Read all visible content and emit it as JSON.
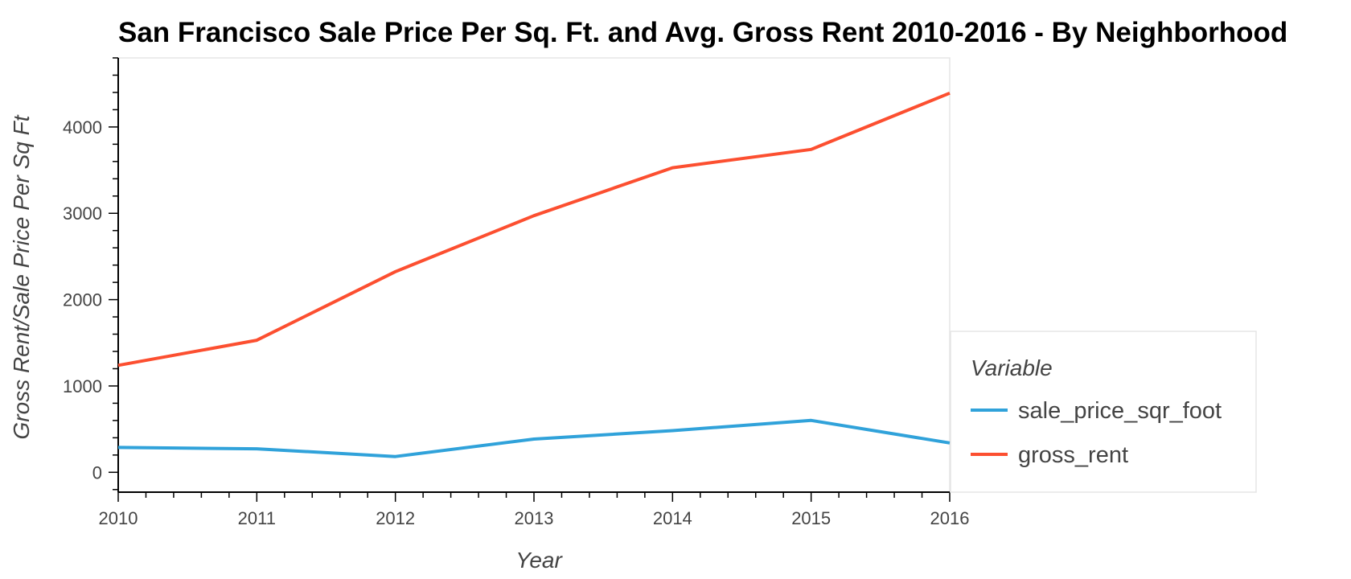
{
  "chart_data": {
    "type": "line",
    "title": "San Francisco Sale Price Per Sq. Ft. and Avg. Gross Rent 2010-2016 - By Neighborhood",
    "xlabel": "Year",
    "ylabel": "Gross Rent/Sale Price Per Sq Ft",
    "x": [
      2010,
      2011,
      2012,
      2013,
      2014,
      2015,
      2016
    ],
    "xlim": [
      2010,
      2016
    ],
    "ylim": [
      -230,
      4800
    ],
    "x_ticks": [
      "2010",
      "2011",
      "2012",
      "2013",
      "2014",
      "2015",
      "2016"
    ],
    "y_ticks": [
      "0",
      "1000",
      "2000",
      "3000",
      "4000"
    ],
    "grid": false,
    "legend": {
      "title": "Variable",
      "placement": "right"
    },
    "series": [
      {
        "name": "sale_price_sqr_foot",
        "color": "#30a2da",
        "values": [
          288,
          272,
          183,
          385,
          483,
          601,
          340
        ]
      },
      {
        "name": "gross_rent",
        "color": "#fc4f30",
        "values": [
          1239,
          1530,
          2324,
          2972,
          3528,
          3740,
          4392
        ]
      }
    ]
  }
}
